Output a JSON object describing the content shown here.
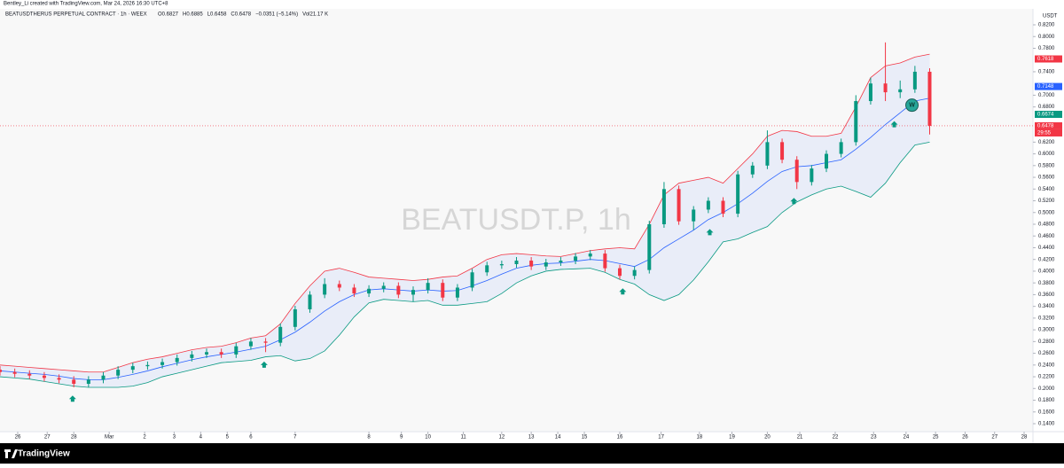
{
  "credit": "Bentley_Li created with TradingView.com, Mar 24, 2026 16:30 UTC+8",
  "brand": "TradingView",
  "chart_data": {
    "type": "candlestick",
    "title": "BEATUSDTHERUS PERPETUAL CONTRACT · 1h · WEEX",
    "ohlc_legend": [
      "O0.6827",
      "H0.6885",
      "L0.6458",
      "C0.6478",
      "−0.0351 (−5.14%)",
      "Vol21.17 K"
    ],
    "watermark": "BEATUSDT.P, 1h",
    "currency": "USDT",
    "up_color": "#089981",
    "down_color": "#f23645",
    "x": [
      0,
      5,
      10,
      15,
      20,
      25,
      30,
      35,
      40,
      45,
      50,
      55,
      60,
      65,
      70,
      75,
      80,
      85,
      90,
      95,
      100,
      105,
      110,
      115,
      120,
      125,
      130,
      135,
      140,
      145,
      150,
      155,
      160,
      165,
      170,
      175,
      180,
      185,
      190,
      195,
      200,
      205,
      210,
      215,
      220,
      225,
      230,
      235,
      240,
      245,
      250,
      255,
      260,
      265,
      270,
      275,
      280,
      285,
      290,
      295,
      300,
      305,
      310,
      315
    ],
    "open": [
      0.232,
      0.228,
      0.225,
      0.222,
      0.218,
      0.215,
      0.208,
      0.215,
      0.222,
      0.232,
      0.238,
      0.24,
      0.245,
      0.252,
      0.258,
      0.262,
      0.258,
      0.272,
      0.28,
      0.278,
      0.305,
      0.335,
      0.36,
      0.378,
      0.372,
      0.362,
      0.37,
      0.375,
      0.36,
      0.368,
      0.38,
      0.355,
      0.372,
      0.398,
      0.41,
      0.412,
      0.418,
      0.408,
      0.415,
      0.418,
      0.425,
      0.43,
      0.405,
      0.392,
      0.402,
      0.48,
      0.54,
      0.485,
      0.505,
      0.52,
      0.498,
      0.565,
      0.58,
      0.62,
      0.59,
      0.552,
      0.575,
      0.6,
      0.62,
      0.69,
      0.72,
      0.705,
      0.71,
      0.74
    ],
    "high": [
      0.238,
      0.234,
      0.231,
      0.228,
      0.224,
      0.221,
      0.221,
      0.228,
      0.238,
      0.244,
      0.246,
      0.251,
      0.258,
      0.264,
      0.268,
      0.268,
      0.278,
      0.286,
      0.286,
      0.311,
      0.341,
      0.366,
      0.388,
      0.384,
      0.378,
      0.376,
      0.381,
      0.381,
      0.374,
      0.388,
      0.386,
      0.378,
      0.404,
      0.416,
      0.418,
      0.424,
      0.424,
      0.421,
      0.424,
      0.431,
      0.436,
      0.436,
      0.411,
      0.408,
      0.486,
      0.552,
      0.546,
      0.511,
      0.526,
      0.526,
      0.571,
      0.586,
      0.64,
      0.626,
      0.596,
      0.581,
      0.606,
      0.626,
      0.7,
      0.73,
      0.79,
      0.725,
      0.75,
      0.746
    ],
    "low": [
      0.222,
      0.219,
      0.216,
      0.212,
      0.209,
      0.202,
      0.202,
      0.209,
      0.216,
      0.226,
      0.232,
      0.234,
      0.239,
      0.246,
      0.252,
      0.252,
      0.252,
      0.266,
      0.262,
      0.272,
      0.299,
      0.329,
      0.354,
      0.366,
      0.356,
      0.356,
      0.364,
      0.354,
      0.348,
      0.362,
      0.349,
      0.349,
      0.366,
      0.392,
      0.404,
      0.406,
      0.402,
      0.402,
      0.409,
      0.412,
      0.419,
      0.399,
      0.386,
      0.386,
      0.396,
      0.474,
      0.479,
      0.47,
      0.499,
      0.492,
      0.492,
      0.559,
      0.574,
      0.584,
      0.54,
      0.546,
      0.569,
      0.594,
      0.614,
      0.684,
      0.69,
      0.695,
      0.704,
      0.633
    ],
    "close": [
      0.228,
      0.225,
      0.222,
      0.218,
      0.215,
      0.208,
      0.215,
      0.222,
      0.232,
      0.238,
      0.24,
      0.245,
      0.252,
      0.258,
      0.262,
      0.258,
      0.272,
      0.28,
      0.278,
      0.305,
      0.335,
      0.36,
      0.378,
      0.372,
      0.362,
      0.37,
      0.375,
      0.36,
      0.368,
      0.38,
      0.355,
      0.372,
      0.398,
      0.41,
      0.412,
      0.418,
      0.408,
      0.415,
      0.418,
      0.425,
      0.43,
      0.405,
      0.392,
      0.402,
      0.48,
      0.54,
      0.485,
      0.505,
      0.52,
      0.498,
      0.565,
      0.58,
      0.62,
      0.59,
      0.552,
      0.575,
      0.6,
      0.62,
      0.69,
      0.72,
      0.705,
      0.71,
      0.74,
      0.6478
    ],
    "bands": [
      {
        "color": "#f23645",
        "values": [
          0.24,
          0.238,
          0.236,
          0.234,
          0.232,
          0.23,
          0.228,
          0.228,
          0.236,
          0.244,
          0.25,
          0.254,
          0.26,
          0.266,
          0.27,
          0.272,
          0.278,
          0.286,
          0.29,
          0.31,
          0.345,
          0.375,
          0.4,
          0.405,
          0.398,
          0.39,
          0.388,
          0.386,
          0.384,
          0.386,
          0.39,
          0.392,
          0.405,
          0.42,
          0.428,
          0.43,
          0.428,
          0.426,
          0.425,
          0.43,
          0.435,
          0.438,
          0.44,
          0.438,
          0.48,
          0.53,
          0.55,
          0.555,
          0.56,
          0.55,
          0.575,
          0.6,
          0.63,
          0.64,
          0.638,
          0.63,
          0.63,
          0.635,
          0.68,
          0.73,
          0.75,
          0.755,
          0.765,
          0.77
        ]
      },
      {
        "color": "#2962ff",
        "values": [
          0.23,
          0.228,
          0.226,
          0.224,
          0.221,
          0.217,
          0.215,
          0.215,
          0.219,
          0.224,
          0.23,
          0.237,
          0.243,
          0.249,
          0.254,
          0.258,
          0.262,
          0.267,
          0.272,
          0.283,
          0.296,
          0.313,
          0.332,
          0.348,
          0.36,
          0.368,
          0.37,
          0.368,
          0.366,
          0.368,
          0.366,
          0.367,
          0.375,
          0.384,
          0.395,
          0.405,
          0.41,
          0.413,
          0.414,
          0.417,
          0.42,
          0.418,
          0.413,
          0.408,
          0.42,
          0.44,
          0.455,
          0.47,
          0.488,
          0.5,
          0.515,
          0.533,
          0.553,
          0.57,
          0.578,
          0.58,
          0.585,
          0.59,
          0.608,
          0.628,
          0.65,
          0.67,
          0.69,
          0.695
        ]
      },
      {
        "color": "#089981",
        "values": [
          0.22,
          0.218,
          0.216,
          0.212,
          0.208,
          0.204,
          0.202,
          0.202,
          0.202,
          0.204,
          0.21,
          0.22,
          0.226,
          0.232,
          0.238,
          0.244,
          0.246,
          0.248,
          0.254,
          0.256,
          0.247,
          0.251,
          0.264,
          0.291,
          0.322,
          0.346,
          0.352,
          0.35,
          0.348,
          0.35,
          0.342,
          0.342,
          0.345,
          0.348,
          0.362,
          0.38,
          0.392,
          0.4,
          0.403,
          0.404,
          0.405,
          0.398,
          0.386,
          0.378,
          0.36,
          0.35,
          0.36,
          0.385,
          0.416,
          0.45,
          0.455,
          0.466,
          0.476,
          0.5,
          0.518,
          0.53,
          0.54,
          0.545,
          0.536,
          0.526,
          0.55,
          0.585,
          0.615,
          0.62
        ]
      }
    ],
    "signals": {
      "color": "#089981",
      "x": [
        24.6,
        89.5,
        211,
        240.5,
        269,
        303
      ],
      "y": [
        0.2,
        0.258,
        0.383,
        0.484,
        0.537,
        0.668
      ]
    },
    "annotation": {
      "label": "W",
      "x": 309,
      "y": 0.683
    },
    "price_badges": [
      {
        "value": 0.7618,
        "color": "#f23645"
      },
      {
        "value": 0.7148,
        "color": "#2962ff"
      },
      {
        "value": 0.6674,
        "color": "#089981"
      },
      {
        "value": 0.6478,
        "color": "#f23645"
      }
    ],
    "countdown": "29:55",
    "last_price": 0.6478,
    "xlim": [
      0,
      350
    ],
    "xticks": [
      {
        "value": 6,
        "label": "26"
      },
      {
        "value": 16,
        "label": "27"
      },
      {
        "value": 25,
        "label": "28"
      },
      {
        "value": 37,
        "label": "Mar"
      },
      {
        "value": 49,
        "label": "2"
      },
      {
        "value": 59,
        "label": "3"
      },
      {
        "value": 68,
        "label": "4"
      },
      {
        "value": 77,
        "label": "5"
      },
      {
        "value": 85,
        "label": "6"
      },
      {
        "value": 100,
        "label": "7"
      },
      {
        "value": 125,
        "label": "8"
      },
      {
        "value": 136,
        "label": "9"
      },
      {
        "value": 145,
        "label": "10"
      },
      {
        "value": 157,
        "label": "11"
      },
      {
        "value": 170,
        "label": "12"
      },
      {
        "value": 180,
        "label": "13"
      },
      {
        "value": 189,
        "label": "14"
      },
      {
        "value": 198,
        "label": "15"
      },
      {
        "value": 210,
        "label": "16"
      },
      {
        "value": 224,
        "label": "17"
      },
      {
        "value": 237,
        "label": "18"
      },
      {
        "value": 248,
        "label": "19"
      },
      {
        "value": 260,
        "label": "20"
      },
      {
        "value": 271,
        "label": "21"
      },
      {
        "value": 283,
        "label": "22"
      },
      {
        "value": 296,
        "label": "23"
      },
      {
        "value": 307,
        "label": "24"
      },
      {
        "value": 317,
        "label": "25"
      },
      {
        "value": 327,
        "label": "26"
      },
      {
        "value": 337,
        "label": "27"
      },
      {
        "value": 347,
        "label": "28"
      }
    ],
    "ylim": [
      0.1264,
      0.8472
    ],
    "yticks": [
      {
        "value": 0.82,
        "label": "0.8200"
      },
      {
        "value": 0.8,
        "label": "0.8000"
      },
      {
        "value": 0.78,
        "label": "0.7800"
      },
      {
        "value": 0.74,
        "label": "0.7400"
      },
      {
        "value": 0.7,
        "label": "0.7000"
      },
      {
        "value": 0.68,
        "label": "0.6800"
      },
      {
        "value": 0.62,
        "label": "0.6200"
      },
      {
        "value": 0.6,
        "label": "0.6000"
      },
      {
        "value": 0.58,
        "label": "0.5800"
      },
      {
        "value": 0.56,
        "label": "0.5600"
      },
      {
        "value": 0.54,
        "label": "0.5400"
      },
      {
        "value": 0.52,
        "label": "0.5200"
      },
      {
        "value": 0.5,
        "label": "0.5000"
      },
      {
        "value": 0.48,
        "label": "0.4800"
      },
      {
        "value": 0.46,
        "label": "0.4600"
      },
      {
        "value": 0.44,
        "label": "0.4400"
      },
      {
        "value": 0.42,
        "label": "0.4200"
      },
      {
        "value": 0.4,
        "label": "0.4000"
      },
      {
        "value": 0.38,
        "label": "0.3800"
      },
      {
        "value": 0.36,
        "label": "0.3600"
      },
      {
        "value": 0.34,
        "label": "0.3400"
      },
      {
        "value": 0.32,
        "label": "0.3200"
      },
      {
        "value": 0.3,
        "label": "0.3000"
      },
      {
        "value": 0.28,
        "label": "0.2800"
      },
      {
        "value": 0.26,
        "label": "0.2600"
      },
      {
        "value": 0.24,
        "label": "0.2400"
      },
      {
        "value": 0.22,
        "label": "0.2200"
      },
      {
        "value": 0.2,
        "label": "0.2000"
      },
      {
        "value": 0.18,
        "label": "0.1800"
      },
      {
        "value": 0.16,
        "label": "0.1600"
      },
      {
        "value": 0.14,
        "label": "0.1400"
      }
    ]
  }
}
